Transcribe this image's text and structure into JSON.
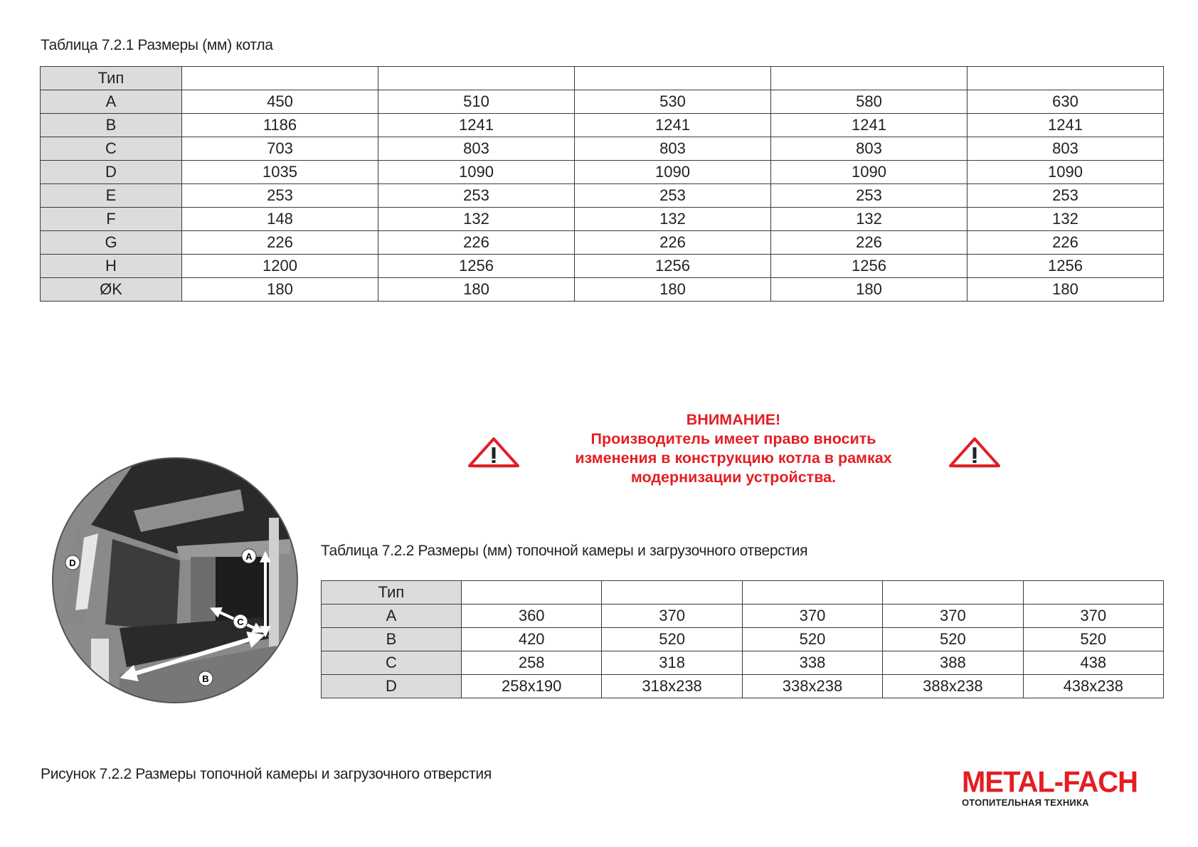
{
  "table1": {
    "title": "Таблица 7.2.1 Размеры (мм) котла",
    "header": [
      "Тип",
      "",
      "",
      "",
      "",
      ""
    ],
    "rows": [
      [
        "A",
        "450",
        "510",
        "530",
        "580",
        "630"
      ],
      [
        "B",
        "1186",
        "1241",
        "1241",
        "1241",
        "1241"
      ],
      [
        "C",
        "703",
        "803",
        "803",
        "803",
        "803"
      ],
      [
        "D",
        "1035",
        "1090",
        "1090",
        "1090",
        "1090"
      ],
      [
        "E",
        "253",
        "253",
        "253",
        "253",
        "253"
      ],
      [
        "F",
        "148",
        "132",
        "132",
        "132",
        "132"
      ],
      [
        "G",
        "226",
        "226",
        "226",
        "226",
        "226"
      ],
      [
        "H",
        "1200",
        "1256",
        "1256",
        "1256",
        "1256"
      ],
      [
        "ØK",
        "180",
        "180",
        "180",
        "180",
        "180"
      ]
    ]
  },
  "warning": {
    "title": "ВНИМАНИЕ!",
    "lines": [
      "Производитель имеет право вносить",
      "изменения в конструкцию котла в рамках",
      "модернизации устройства."
    ],
    "icon": "warning-triangle-icon",
    "color": "#e31e24"
  },
  "table2": {
    "title": "Таблица 7.2.2 Размеры (мм) топочной камеры и загрузочного отверстия",
    "header": [
      "Тип",
      "",
      "",
      "",
      "",
      ""
    ],
    "rows": [
      [
        "A",
        "360",
        "370",
        "370",
        "370",
        "370"
      ],
      [
        "B",
        "420",
        "520",
        "520",
        "520",
        "520"
      ],
      [
        "C",
        "258",
        "318",
        "338",
        "388",
        "438"
      ],
      [
        "D",
        "258x190",
        "318x238",
        "338x238",
        "388x238",
        "438x238"
      ]
    ]
  },
  "figure": {
    "labels": {
      "a": "A",
      "b": "B",
      "c": "C",
      "d": "D"
    },
    "caption": "Рисунок 7.2.2 Размеры топочной камеры и загрузочного отверстия"
  },
  "logo": {
    "brand": "METAL-FACH",
    "tagline": "ОТОПИТЕЛЬНАЯ ТЕХНИКА",
    "color": "#e31e24"
  }
}
